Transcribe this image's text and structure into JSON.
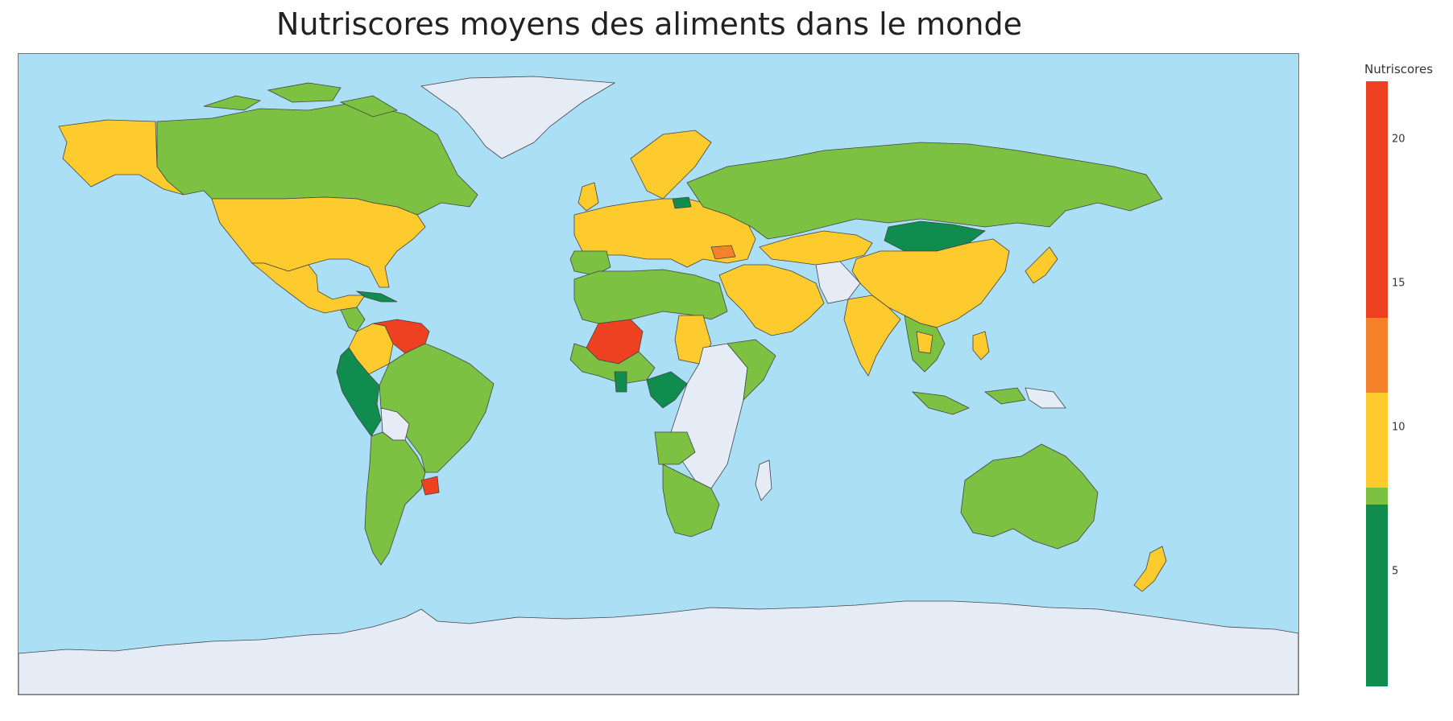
{
  "title": "Nutriscores moyens des aliments dans le monde",
  "legend": {
    "title": "Nutriscores",
    "range": [
      1,
      22
    ],
    "ticks": [
      {
        "value": 5,
        "label": "5"
      },
      {
        "value": 10,
        "label": "10"
      },
      {
        "value": 15,
        "label": "15"
      },
      {
        "value": 20,
        "label": "20"
      }
    ],
    "bands": [
      {
        "from": 1,
        "to": 7.3,
        "color": "#118c4f"
      },
      {
        "from": 7.3,
        "to": 7.9,
        "color": "#7dc142"
      },
      {
        "from": 7.9,
        "to": 11.2,
        "color": "#fecb2e"
      },
      {
        "from": 11.2,
        "to": 13.8,
        "color": "#f5822a"
      },
      {
        "from": 13.8,
        "to": 22,
        "color": "#ee4122"
      }
    ]
  },
  "colors": {
    "ocean": "#aadff6",
    "no_data": "#e5ecf6",
    "border": "#444444",
    "lakes": "#7fb9ea"
  },
  "map_data": {
    "projection": "equirectangular",
    "metric": "Nutriscores",
    "regions": [
      {
        "name": "USA",
        "level": "yellow"
      },
      {
        "name": "Canada",
        "level": "green"
      },
      {
        "name": "Alaska",
        "level": "yellow"
      },
      {
        "name": "Mexico",
        "level": "yellow"
      },
      {
        "name": "Greenland",
        "level": "no_data"
      },
      {
        "name": "Colombia",
        "level": "yellow"
      },
      {
        "name": "Venezuela",
        "level": "red"
      },
      {
        "name": "Ecuador/Peru",
        "level": "dark_green"
      },
      {
        "name": "Brazil",
        "level": "green"
      },
      {
        "name": "Bolivia",
        "level": "no_data"
      },
      {
        "name": "Uruguay",
        "level": "red"
      },
      {
        "name": "Argentina/Chile",
        "level": "green"
      },
      {
        "name": "Western Europe",
        "level": "yellow"
      },
      {
        "name": "Scandinavia",
        "level": "yellow"
      },
      {
        "name": "Russia",
        "level": "green"
      },
      {
        "name": "Mongolia",
        "level": "dark_green"
      },
      {
        "name": "China",
        "level": "yellow"
      },
      {
        "name": "India",
        "level": "yellow"
      },
      {
        "name": "Middle East",
        "level": "yellow"
      },
      {
        "name": "Mali",
        "level": "red"
      },
      {
        "name": "North Africa",
        "level": "green"
      },
      {
        "name": "Central Africa",
        "level": "no_data"
      },
      {
        "name": "Southern Africa",
        "level": "green"
      },
      {
        "name": "Australia",
        "level": "green"
      },
      {
        "name": "New Zealand",
        "level": "yellow"
      },
      {
        "name": "Antarctica",
        "level": "no_data"
      }
    ]
  }
}
